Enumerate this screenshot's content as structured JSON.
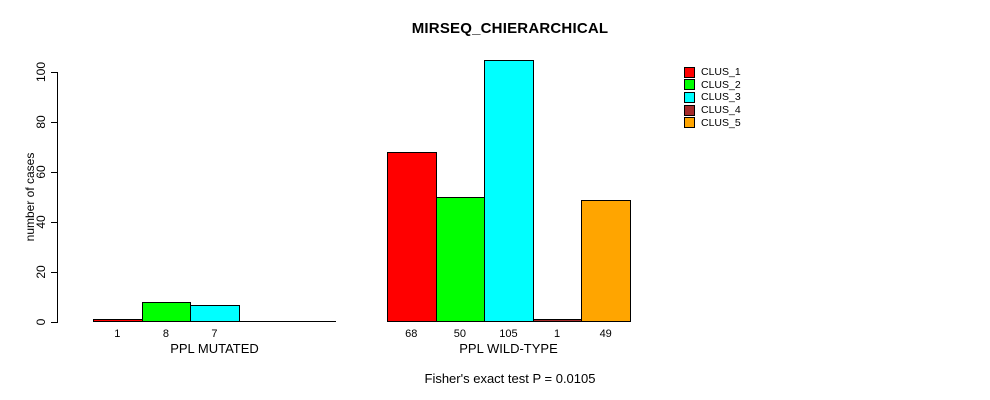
{
  "chart_data": {
    "type": "bar",
    "title": "MIRSEQ_CHIERARCHICAL",
    "ylabel": "number of cases",
    "xlabel": "",
    "ylim": [
      0,
      105
    ],
    "yticks": [
      0,
      20,
      40,
      60,
      80,
      100
    ],
    "grid": false,
    "legend_position": "top-right",
    "series": [
      {
        "name": "CLUS_1",
        "color": "#FF0000"
      },
      {
        "name": "CLUS_2",
        "color": "#00FF00"
      },
      {
        "name": "CLUS_3",
        "color": "#00FFFF"
      },
      {
        "name": "CLUS_4",
        "color": "#A52A2A"
      },
      {
        "name": "CLUS_5",
        "color": "#FFA500"
      }
    ],
    "groups": [
      {
        "label": "PPL MUTATED",
        "values": [
          1,
          8,
          7,
          0,
          0
        ],
        "bar_labels": [
          "1",
          "8",
          "7",
          "",
          ""
        ]
      },
      {
        "label": "PPL WILD-TYPE",
        "values": [
          68,
          50,
          105,
          1,
          49
        ],
        "bar_labels": [
          "68",
          "50",
          "105",
          "1",
          "49"
        ]
      }
    ],
    "annotation": "Fisher's exact test P = 0.0105"
  }
}
